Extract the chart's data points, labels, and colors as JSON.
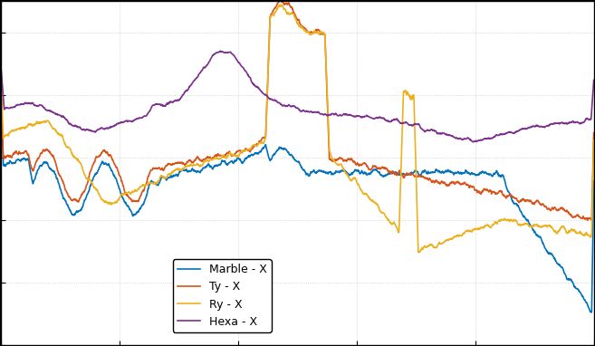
{
  "title": "",
  "xlabel": "",
  "ylabel": "",
  "legend_labels": [
    "Marble - X",
    "Ty - X",
    "Ry - X",
    "Hexa - X"
  ],
  "colors": [
    "#0072BD",
    "#D95319",
    "#EDB120",
    "#7E2F8E"
  ],
  "linewidth": 1.2,
  "background_color": "#ffffff",
  "grid_color": "#b0b0b0",
  "xlim": [
    0,
    1000
  ],
  "ylim_approx": [
    -100,
    20
  ],
  "figsize": [
    6.57,
    3.82
  ],
  "dpi": 100
}
